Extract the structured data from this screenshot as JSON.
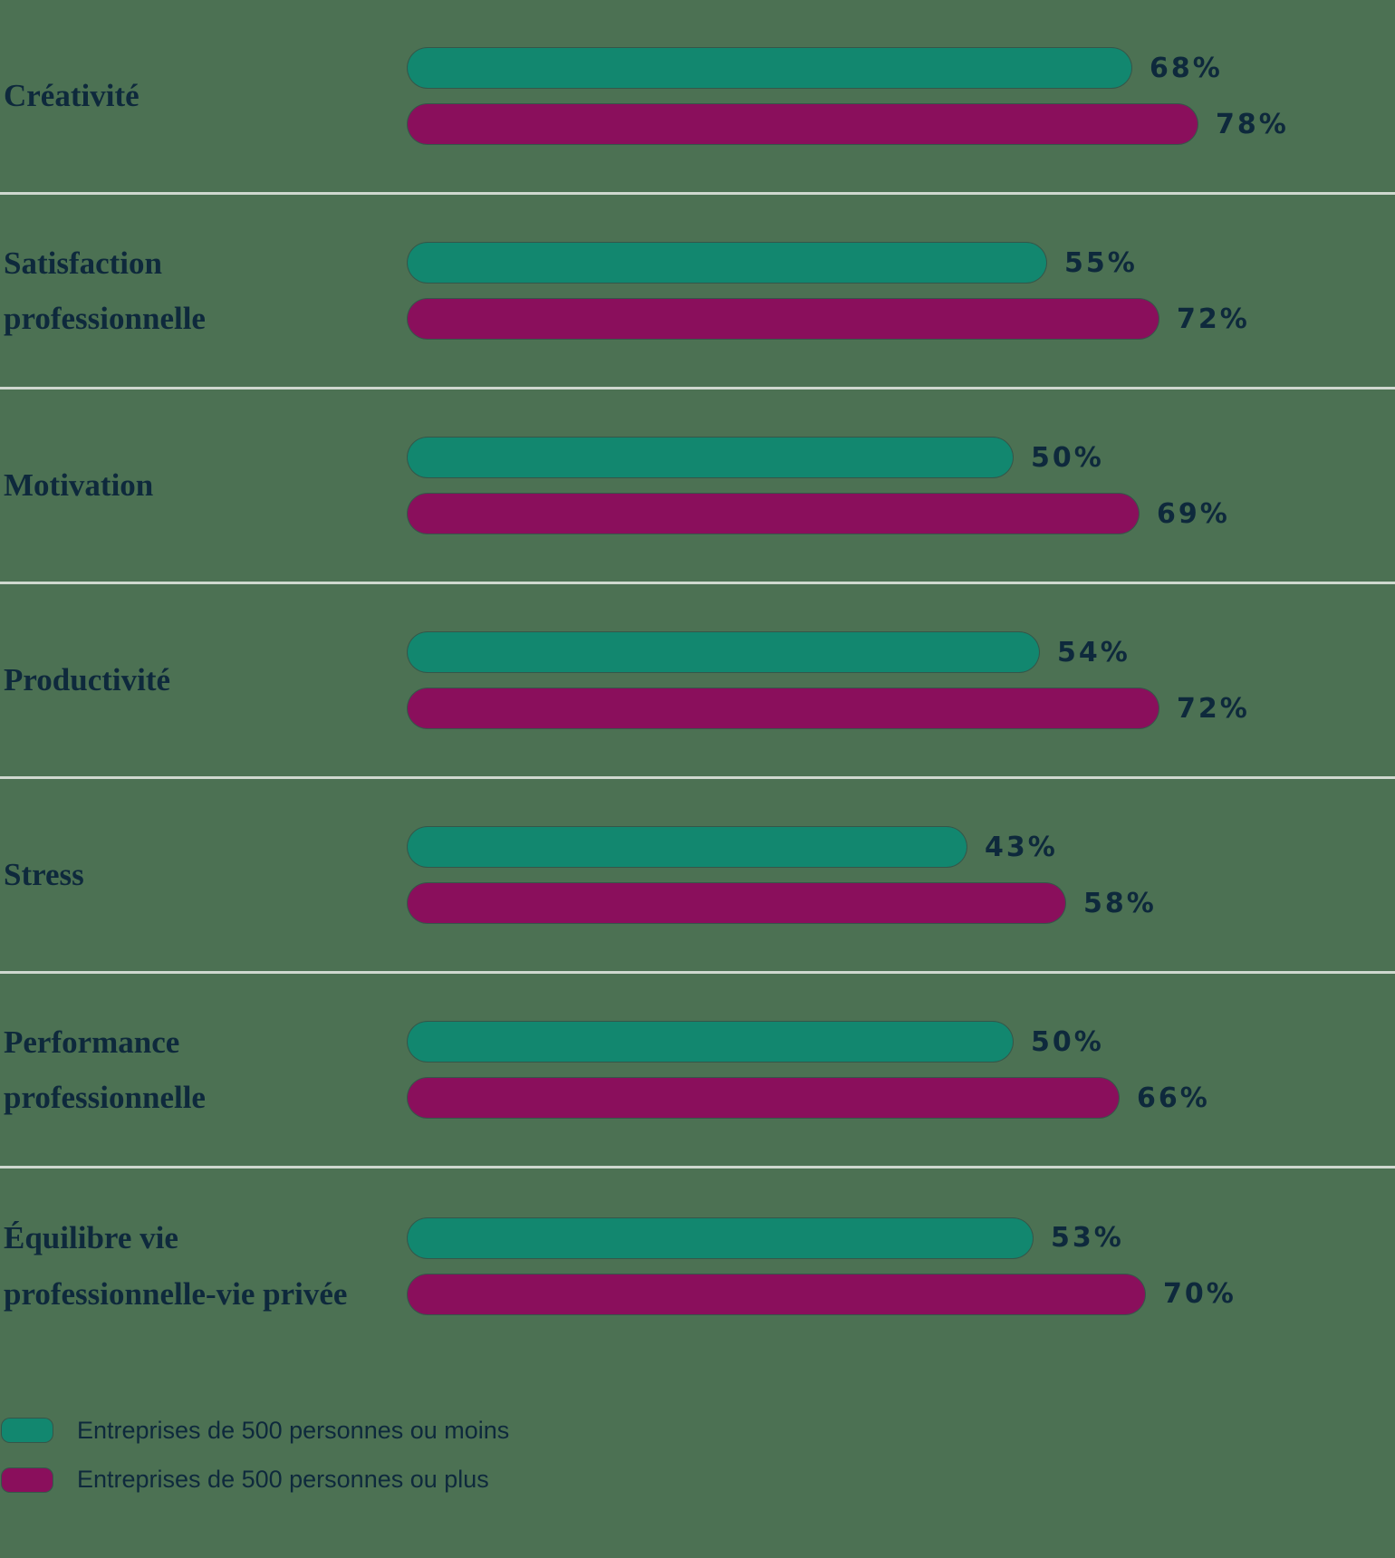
{
  "chart_data": {
    "type": "bar",
    "orientation": "horizontal",
    "title": "",
    "xlabel": "",
    "ylabel": "",
    "xlim": [
      0,
      100
    ],
    "grid": false,
    "value_suffix": "%",
    "legend_position": "bottom-left",
    "categories": [
      "Créativité",
      "Satisfaction professionnelle",
      "Motivation",
      "Productivité",
      "Stress",
      "Performance professionnelle",
      "Équilibre vie professionnelle-vie privée"
    ],
    "series": [
      {
        "name": "Entreprises de 500 personnes ou moins",
        "color": "#12876F",
        "values": [
          68,
          55,
          50,
          54,
          43,
          50,
          53
        ]
      },
      {
        "name": "Entreprises de 500 personnes ou plus",
        "color": "#8A0F5C",
        "values": [
          78,
          72,
          69,
          72,
          58,
          66,
          70
        ]
      }
    ],
    "value_labels": [
      [
        "68%",
        "55%",
        "50%",
        "54%",
        "43%",
        "50%",
        "53%"
      ],
      [
        "78%",
        "72%",
        "69%",
        "72%",
        "58%",
        "66%",
        "70%"
      ]
    ]
  },
  "colors": {
    "background": "#4C7153",
    "text": "#0E293C",
    "separator": "#CFD8CF",
    "series_small": "#12876F",
    "series_large": "#8A0F5C"
  }
}
